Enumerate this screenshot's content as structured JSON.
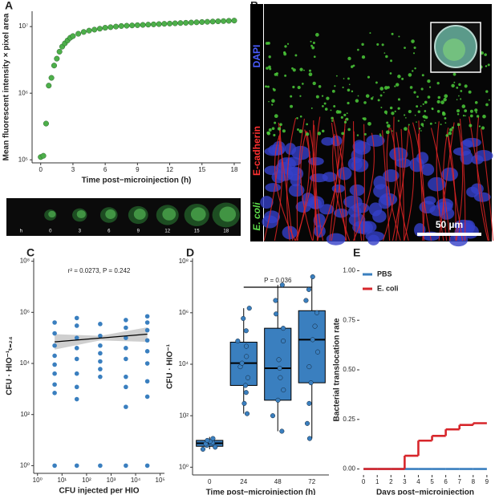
{
  "chart_data": [
    {
      "panel": "A",
      "type": "scatter",
      "ylabel": "Mean fluorescent intensity × pixel area",
      "xlabel": "Time post−microinjection (h)",
      "x": [
        0,
        0.25,
        0.5,
        0.75,
        1,
        1.25,
        1.5,
        1.75,
        2,
        2.25,
        2.5,
        2.75,
        3,
        3.5,
        4,
        4.5,
        5,
        5.5,
        6,
        6.5,
        7,
        7.5,
        8,
        8.5,
        9,
        9.5,
        10,
        10.5,
        11,
        11.5,
        12,
        12.5,
        13,
        13.5,
        14,
        14.5,
        15,
        15.5,
        16,
        16.5,
        17,
        17.5,
        18
      ],
      "values": [
        110000,
        115000,
        350000,
        1300000,
        1700000,
        2600000,
        3300000,
        4200000,
        5000000,
        5600000,
        6200000,
        6800000,
        7200000,
        7800000,
        8300000,
        8700000,
        9000000,
        9300000,
        9600000,
        9800000,
        10000000,
        10200000,
        10300000,
        10400000,
        10500000,
        10600000,
        10700000,
        10800000,
        10900000,
        11000000,
        11100000,
        11200000,
        11300000,
        11400000,
        11500000,
        11600000,
        11700000,
        11800000,
        11900000,
        12000000,
        12100000,
        12200000,
        12300000
      ],
      "color": "#4daf4a",
      "log_y": true,
      "xlim": [
        -0.8,
        18.6
      ],
      "xticks": [
        0,
        3,
        6,
        9,
        12,
        15,
        18
      ],
      "ylim": [
        90000,
        17000000
      ],
      "yticks": [
        {
          "value": 100000,
          "label": "10⁵"
        },
        {
          "value": 1000000,
          "label": "10⁶"
        },
        {
          "value": 10000000,
          "label": "10⁷"
        }
      ]
    },
    {
      "panel": "B",
      "type": "image"
    },
    {
      "panel": "C",
      "type": "scatter",
      "xlabel": "CFU injected per HIO",
      "ylabel": "CFU · HIO⁻¹ₜ₌₂₄",
      "annotation": "r² = 0.0273, P = 0.242",
      "x": [
        5,
        5,
        5,
        5,
        5,
        5,
        5,
        5,
        5,
        40,
        40,
        40,
        40,
        40,
        40,
        40,
        40,
        40,
        360,
        360,
        360,
        360,
        360,
        360,
        360,
        360,
        4000,
        4000,
        4000,
        4000,
        4000,
        4000,
        4000,
        4000,
        4000,
        30000,
        30000,
        30000,
        30000,
        30000,
        30000,
        30000,
        30000,
        30000
      ],
      "values": [
        400000,
        150000,
        50000,
        20000,
        9000,
        4000,
        1500,
        700,
        1,
        600000,
        300000,
        100000,
        40000,
        15000,
        4000,
        1200,
        400,
        1,
        350000,
        120000,
        50000,
        25000,
        12000,
        6000,
        3000,
        1,
        500000,
        250000,
        100000,
        40000,
        15000,
        3000,
        1200,
        200,
        1,
        700000,
        400000,
        200000,
        80000,
        30000,
        10000,
        2000,
        500,
        1
      ],
      "color": "#3a7fbf",
      "log_x": true,
      "log_y": true,
      "fit": {
        "x": [
          5,
          30000
        ],
        "y": [
          70000,
          140000
        ]
      },
      "band": {
        "x": [
          5,
          360,
          30000
        ],
        "lower": [
          35000,
          80000,
          70000
        ],
        "upper": [
          140000,
          120000,
          260000
        ]
      },
      "xlim": [
        0.7,
        150000
      ],
      "xticks": [
        {
          "value": 1,
          "label": "10⁰"
        },
        {
          "value": 10,
          "label": "10¹"
        },
        {
          "value": 100,
          "label": "10²"
        },
        {
          "value": 1000,
          "label": "10³"
        },
        {
          "value": 10000,
          "label": "10⁴"
        },
        {
          "value": 100000,
          "label": "10⁵"
        }
      ],
      "ylim": [
        0.5,
        130000000
      ],
      "yticks": [
        {
          "value": 1,
          "label": "10⁰"
        },
        {
          "value": 100,
          "label": "10²"
        },
        {
          "value": 10000,
          "label": "10⁴"
        },
        {
          "value": 1000000,
          "label": "10⁶"
        },
        {
          "value": 100000000,
          "label": "10⁸"
        }
      ]
    },
    {
      "panel": "D",
      "type": "box",
      "xlabel": "Time post−microinjection (h)",
      "ylabel": "CFU · HIO⁻¹",
      "annotation": "P = 0.036",
      "categories": [
        "0",
        "24",
        "48",
        "72"
      ],
      "color": "#3a7fbf",
      "log_y": true,
      "boxes": [
        {
          "min": 5,
          "q1": 6.5,
          "median": 8.5,
          "q3": 11,
          "max": 15
        },
        {
          "min": 120,
          "q1": 1500,
          "median": 11000,
          "q3": 72000,
          "max": 1500000
        },
        {
          "min": 25,
          "q1": 400,
          "median": 7000,
          "q3": 250000,
          "max": 12000000
        },
        {
          "min": 13,
          "q1": 1900,
          "median": 90000,
          "q3": 1200000,
          "max": 25000000
        }
      ],
      "points": [
        [
          5,
          6,
          7,
          8,
          9,
          10,
          11,
          13
        ],
        [
          120,
          300,
          800,
          1500,
          3000,
          8000,
          11000,
          20000,
          50000,
          80000,
          200000,
          600000,
          1500000
        ],
        [
          25,
          100,
          400,
          1000,
          3000,
          7000,
          15000,
          80000,
          250000,
          900000,
          3000000,
          12000000
        ],
        [
          13,
          50,
          300,
          1900,
          8000,
          30000,
          90000,
          300000,
          1000000,
          3000000,
          8000000,
          25000000
        ]
      ],
      "ylim": [
        0.5,
        130000000
      ],
      "yticks": [
        {
          "value": 1,
          "label": "10⁰"
        },
        {
          "value": 100,
          "label": "10²"
        },
        {
          "value": 10000,
          "label": "10⁴"
        },
        {
          "value": 1000000,
          "label": "10⁶"
        },
        {
          "value": 100000000,
          "label": "10⁸"
        }
      ]
    },
    {
      "panel": "E",
      "type": "step",
      "xlabel": "Days post−microinjection",
      "ylabel": "Bacterial translocation rate",
      "x": [
        0,
        1,
        2,
        3,
        4,
        5,
        6,
        7,
        8,
        9
      ],
      "series": [
        {
          "name": "PBS",
          "color": "#3a7fbf",
          "values": [
            0,
            0,
            0,
            0,
            0,
            0,
            0,
            0,
            0,
            0
          ]
        },
        {
          "name": "E. coli",
          "color": "#d7262b",
          "values": [
            0,
            0,
            0,
            0.067,
            0.143,
            0.167,
            0.2,
            0.222,
            0.231,
            0.231
          ]
        }
      ],
      "legend": "top-left",
      "xlim": [
        -0.3,
        9.3
      ],
      "xticks": [
        0,
        1,
        2,
        3,
        4,
        5,
        6,
        7,
        8,
        9
      ],
      "ylim": [
        -0.03,
        1.03
      ],
      "yticks": [
        {
          "value": 0,
          "label": "0.00"
        },
        {
          "value": 0.25,
          "label": "0.25"
        },
        {
          "value": 0.5,
          "label": "0.50"
        },
        {
          "value": 0.75,
          "label": "0.75"
        },
        {
          "value": 1,
          "label": "1.00"
        }
      ]
    }
  ],
  "filmstrip": {
    "labels": [
      "h",
      "0",
      "3",
      "6",
      "9",
      "12",
      "15",
      "18"
    ]
  },
  "micrograph": {
    "labels": [
      "DAPI",
      "E-cadherin",
      "E. coli"
    ],
    "colors": [
      "#4a5cff",
      "#ff3030",
      "#5ddc4a"
    ],
    "scale_bar": "50 µm"
  }
}
